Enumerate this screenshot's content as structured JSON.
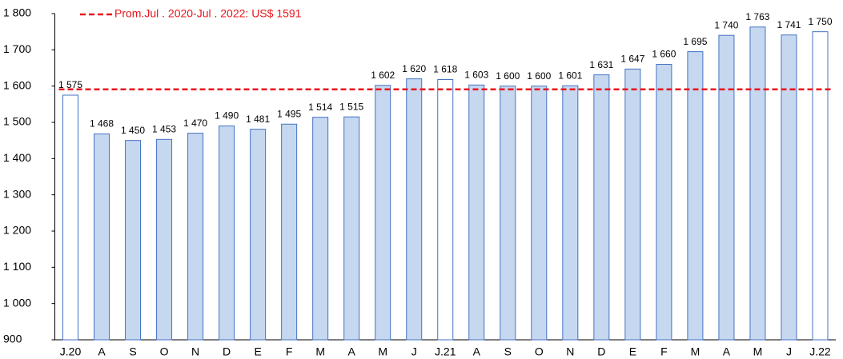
{
  "chart_data": {
    "type": "bar",
    "categories": [
      "J.20",
      "A",
      "S",
      "O",
      "N",
      "D",
      "E",
      "F",
      "M",
      "A",
      "M",
      "J",
      "J.21",
      "A",
      "S",
      "O",
      "N",
      "D",
      "E",
      "F",
      "M",
      "A",
      "M",
      "J",
      "J.22"
    ],
    "values": [
      1575,
      1468,
      1450,
      1453,
      1470,
      1490,
      1481,
      1495,
      1514,
      1515,
      1602,
      1620,
      1618,
      1603,
      1600,
      1600,
      1601,
      1631,
      1647,
      1660,
      1695,
      1740,
      1763,
      1741,
      1750
    ],
    "value_labels": [
      "1 575",
      "1 468",
      "1 450",
      "1 453",
      "1 470",
      "1 490",
      "1 481",
      "1 495",
      "1 514",
      "1 515",
      "1 602",
      "1 620",
      "1 618",
      "1 603",
      "1 600",
      "1 600",
      "1 601",
      "1 631",
      "1 647",
      "1 660",
      "1 695",
      "1 740",
      "1 763",
      "1 741",
      "1 750"
    ],
    "colors": [
      "#ffffff",
      "#c6d7f0",
      "#c6d7f0",
      "#c6d7f0",
      "#c6d7f0",
      "#c6d7f0",
      "#c6d7f0",
      "#c6d7f0",
      "#c6d7f0",
      "#c6d7f0",
      "#c6d7f0",
      "#c6d7f0",
      "#ffffff",
      "#c6d7f0",
      "#c6d7f0",
      "#c6d7f0",
      "#c6d7f0",
      "#c6d7f0",
      "#c6d7f0",
      "#c6d7f0",
      "#c6d7f0",
      "#c6d7f0",
      "#c6d7f0",
      "#c6d7f0",
      "#ffffff"
    ],
    "edge_color": "#4472c4",
    "reference_line": {
      "value": 1591,
      "label": "Prom.Jul . 2020-Jul . 2022: US$ 1591",
      "color": "#e8141b"
    },
    "ylim": [
      900,
      1800
    ],
    "yticks": [
      900,
      {
        "value": 1000,
        "label": "1 000"
      },
      {
        "value": 1100,
        "label": "1 100"
      },
      {
        "value": 1200,
        "label": "1 200"
      },
      {
        "value": 1300,
        "label": "1 300"
      },
      {
        "value": 1400,
        "label": "1 400"
      },
      {
        "value": 1500,
        "label": "1 500"
      },
      {
        "value": 1600,
        "label": "1 600"
      },
      {
        "value": 1700,
        "label": "1 700"
      },
      {
        "value": 1800,
        "label": "1 800"
      }
    ],
    "grid": false
  }
}
